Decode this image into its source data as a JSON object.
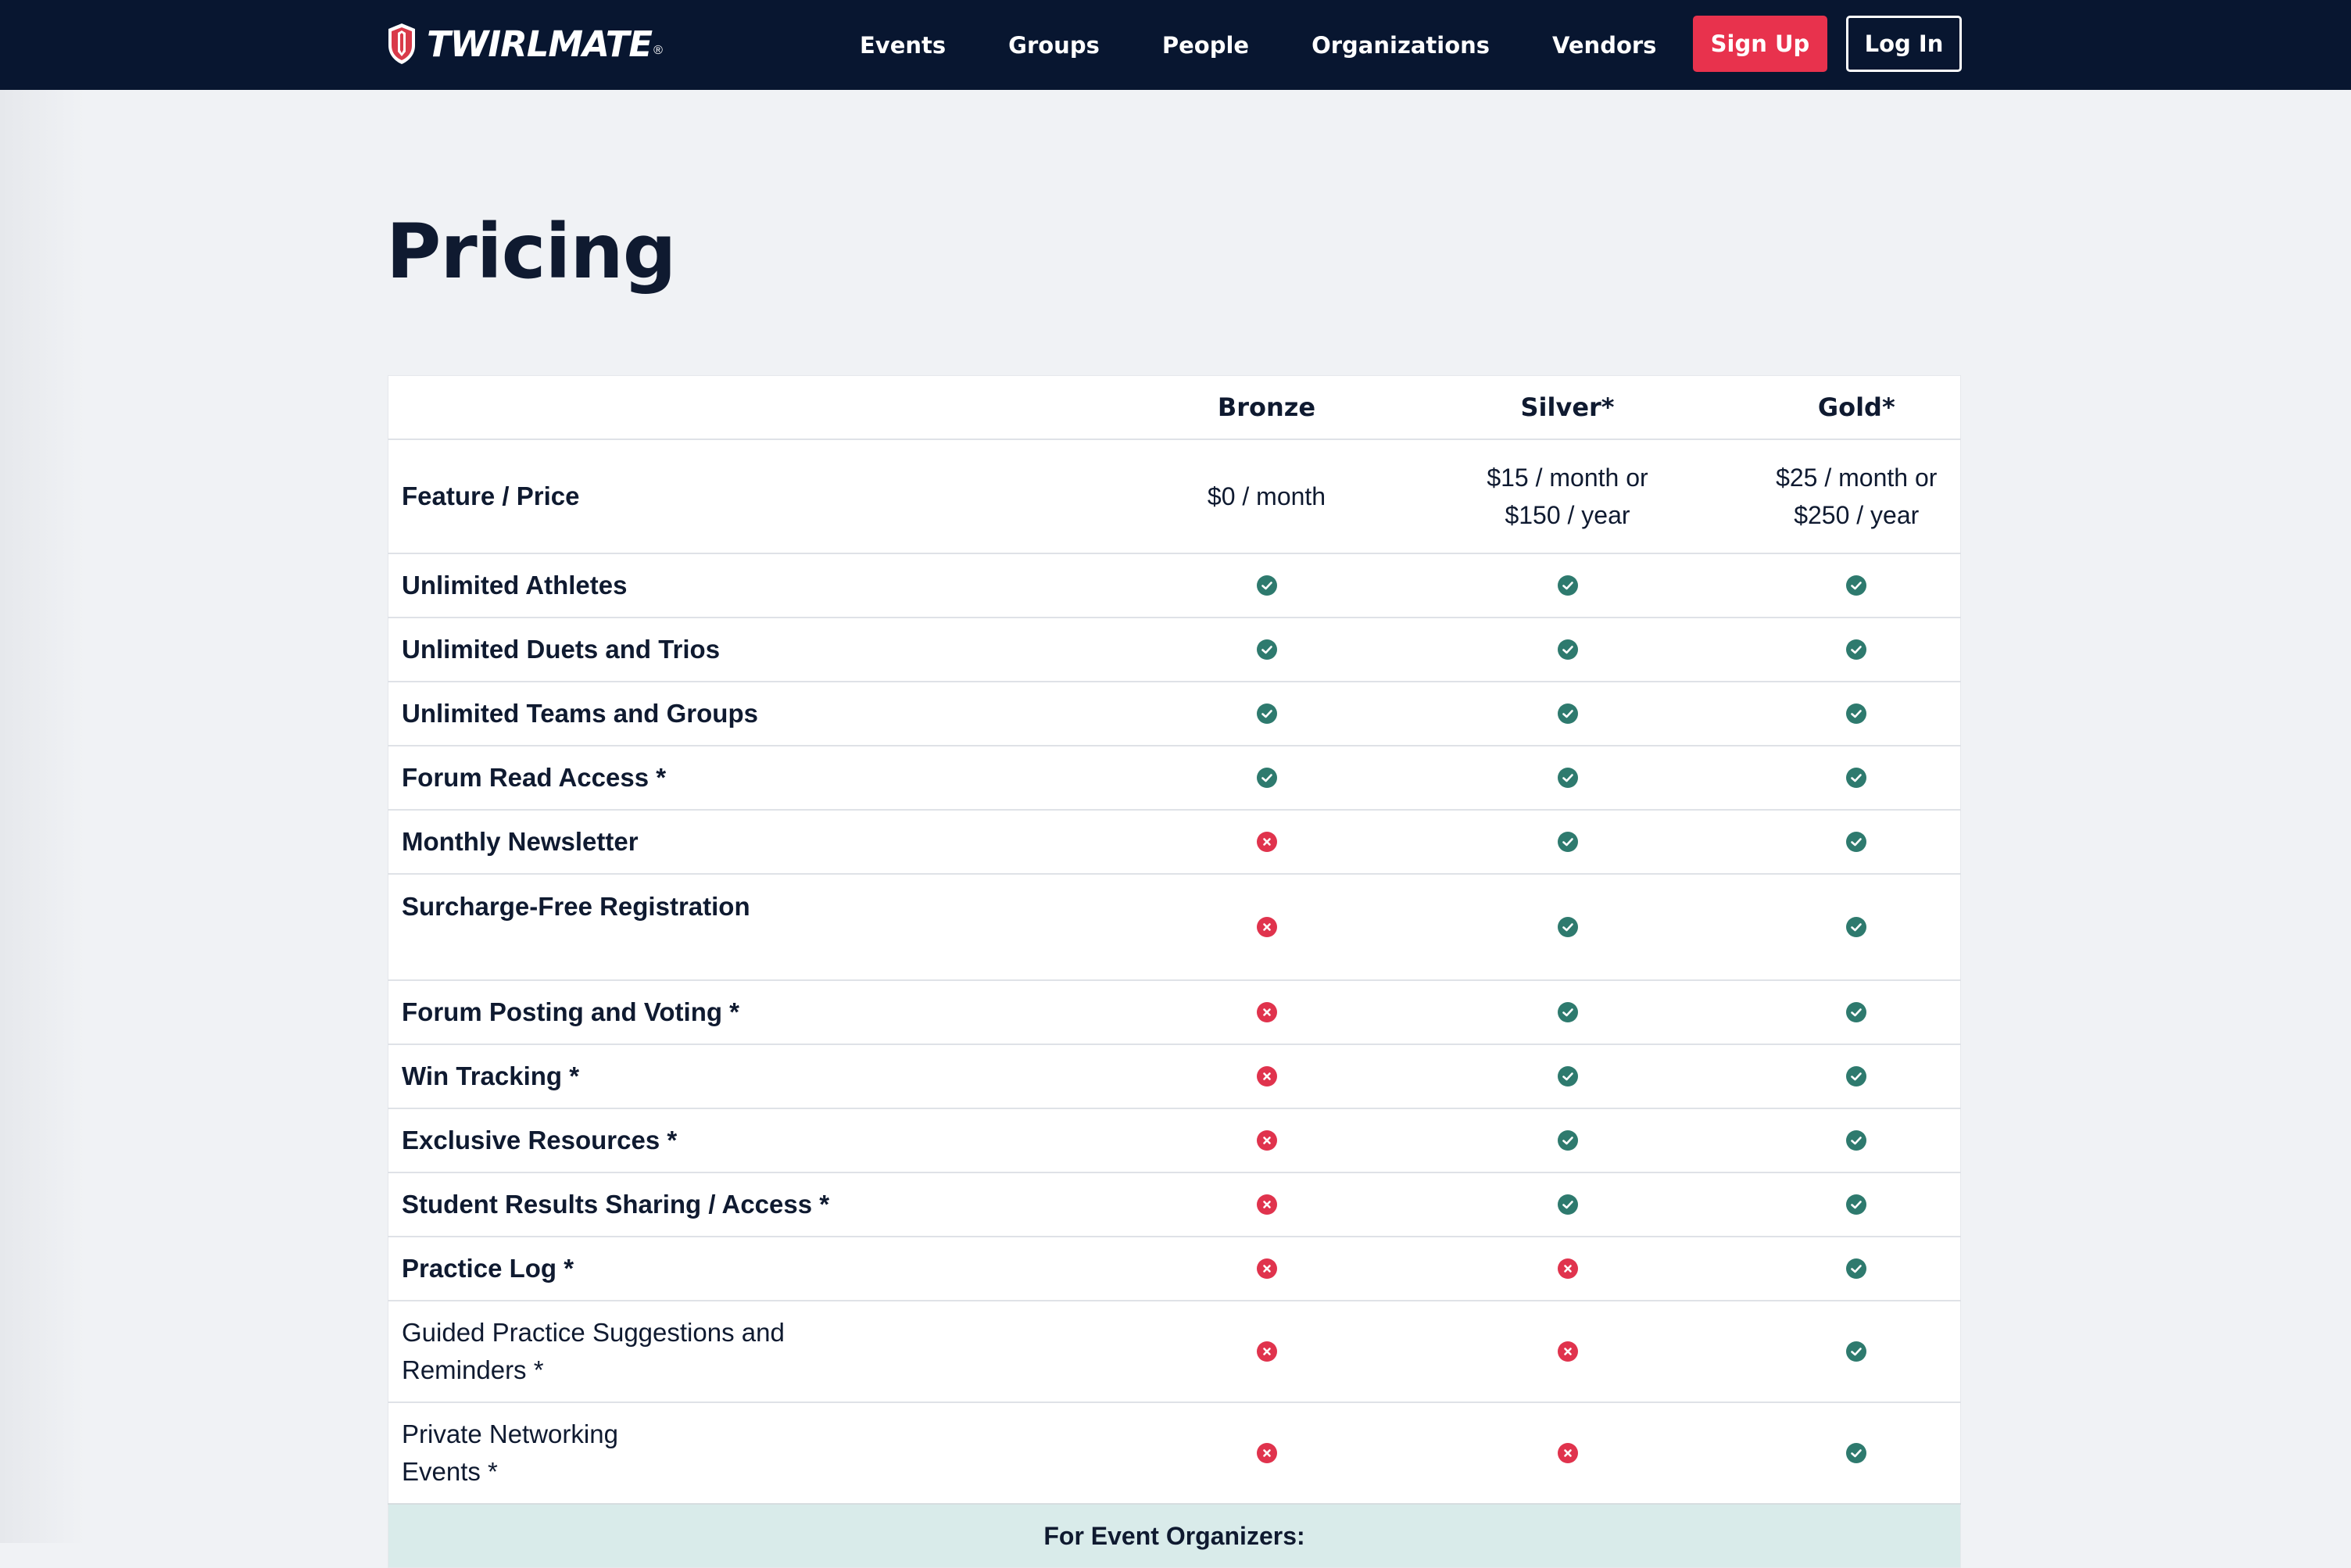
{
  "colors": {
    "header_bg": "#081630",
    "accent_red": "#e8324d",
    "check_teal": "#2e7a6e",
    "cross_red": "#e0334d",
    "page_bg": "#f0f2f5",
    "section_bg": "#d9ebea"
  },
  "header": {
    "logo_text": "TWIRLMATE",
    "logo_reg": "®",
    "nav": [
      "Events",
      "Groups",
      "People",
      "Organizations",
      "Vendors"
    ],
    "signup_label": "Sign Up",
    "login_label": "Log In"
  },
  "page": {
    "title": "Pricing"
  },
  "table": {
    "plans": [
      "Bronze",
      "Silver*",
      "Gold*"
    ],
    "price_row": {
      "label": "Feature / Price",
      "prices": [
        [
          "$0 / month"
        ],
        [
          "$15 / month or",
          "$150 / year"
        ],
        [
          "$25 / month or",
          "$250 / year"
        ]
      ]
    },
    "features": [
      {
        "name": [
          "Unlimited Athletes"
        ],
        "available": [
          true,
          true,
          true
        ]
      },
      {
        "name": [
          "Unlimited Duets and Trios"
        ],
        "available": [
          true,
          true,
          true
        ]
      },
      {
        "name": [
          "Unlimited Teams and Groups"
        ],
        "available": [
          true,
          true,
          true
        ]
      },
      {
        "name": [
          "Forum Read Access *"
        ],
        "available": [
          true,
          true,
          true
        ]
      },
      {
        "name": [
          "Monthly Newsletter"
        ],
        "available": [
          false,
          true,
          true
        ]
      },
      {
        "name": [
          "Surcharge-Free Registration"
        ],
        "available": [
          false,
          true,
          true
        ]
      },
      {
        "name": [
          "Forum Posting and Voting *"
        ],
        "available": [
          false,
          true,
          true
        ]
      },
      {
        "name": [
          "Win Tracking *"
        ],
        "available": [
          false,
          true,
          true
        ]
      },
      {
        "name": [
          "Exclusive Resources *"
        ],
        "available": [
          false,
          true,
          true
        ]
      },
      {
        "name": [
          "Student Results Sharing / Access *"
        ],
        "available": [
          false,
          true,
          true
        ]
      },
      {
        "name": [
          "Practice Log *"
        ],
        "available": [
          false,
          false,
          true
        ]
      },
      {
        "name": [
          "Guided Practice Suggestions and",
          "Reminders *"
        ],
        "available": [
          false,
          false,
          true
        ]
      },
      {
        "name": [
          "Private Networking",
          "Events *"
        ],
        "available": [
          false,
          false,
          true
        ]
      }
    ],
    "section_label": "For Event Organizers:"
  },
  "icons": {
    "available": "check-circle-icon",
    "unavailable": "x-circle-icon"
  }
}
